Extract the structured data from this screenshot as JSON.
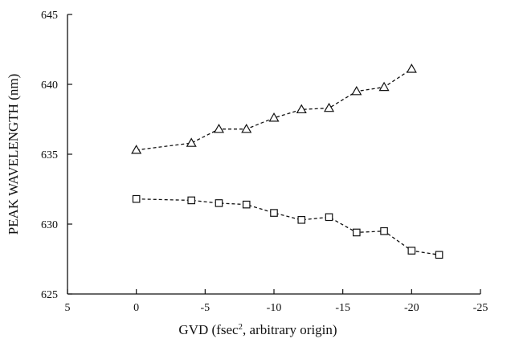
{
  "chart_data": {
    "type": "line",
    "xlabel_main": "GVD (fsec",
    "xlabel_sup": "2",
    "xlabel_rest": ", arbitrary origin)",
    "ylabel": "PEAK WAVELENGTH (nm)",
    "xlim": [
      5,
      -25
    ],
    "ylim": [
      625,
      645
    ],
    "x_ticks": [
      "5",
      "0",
      "-5",
      "-10",
      "-15",
      "-20",
      "-25"
    ],
    "y_ticks": [
      "625",
      "630",
      "635",
      "640",
      "645"
    ],
    "grid": false,
    "series": [
      {
        "marker": "triangle",
        "x": [
          0,
          -4,
          -6,
          -8,
          -10,
          -12,
          -14,
          -16,
          -18,
          -20
        ],
        "y": [
          635.3,
          635.8,
          636.8,
          636.8,
          637.6,
          638.2,
          638.3,
          639.5,
          639.8,
          641.1
        ]
      },
      {
        "marker": "square",
        "x": [
          0,
          -4,
          -6,
          -8,
          -10,
          -12,
          -14,
          -16,
          -18,
          -20,
          -22
        ],
        "y": [
          631.8,
          631.7,
          631.5,
          631.4,
          630.8,
          630.3,
          630.5,
          629.4,
          629.5,
          628.1,
          627.8
        ]
      }
    ]
  }
}
